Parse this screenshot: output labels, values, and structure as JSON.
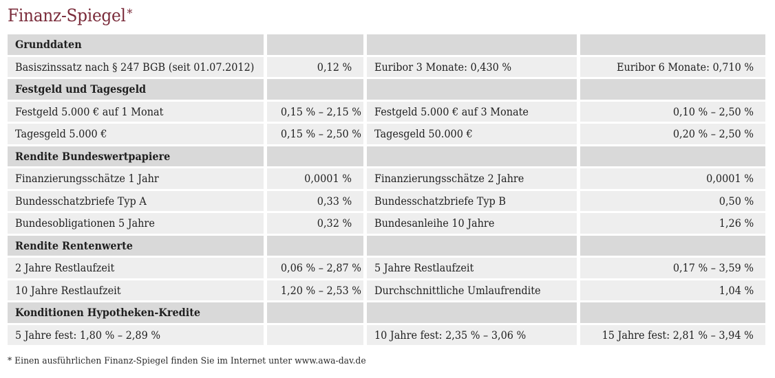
{
  "title": "Finanz-Spiegel",
  "title_marker": "*",
  "sections": [
    {
      "heading": "Grunddaten",
      "rows": [
        {
          "label1": "Basiszinssatz nach § 247 BGB (seit 01.07.2012)",
          "value1": "0,12 %",
          "label2": "Euribor 3 Monate: 0,430 %",
          "value2": "Euribor 6 Monate: 0,710 %"
        }
      ]
    },
    {
      "heading": "Festgeld und Tagesgeld",
      "rows": [
        {
          "label1": "Festgeld 5.000 € auf 1 Monat",
          "value1": "0,15 % – 2,15 %",
          "label2": "Festgeld 5.000 € auf 3 Monate",
          "value2": "0,10 % – 2,50 %"
        },
        {
          "label1": "Tagesgeld 5.000 €",
          "value1": "0,15 % – 2,50 %",
          "label2": "Tagesgeld 50.000 €",
          "value2": "0,20 % – 2,50 %"
        }
      ]
    },
    {
      "heading": "Rendite Bundeswertpapiere",
      "rows": [
        {
          "label1": "Finanzierungsschätze 1 Jahr",
          "value1": "0,0001 %",
          "label2": "Finanzierungsschätze 2 Jahre",
          "value2": "0,0001 %"
        },
        {
          "label1": "Bundesschatzbriefe Typ A",
          "value1": "0,33 %",
          "label2": "Bundesschatzbriefe Typ B",
          "value2": "0,50 %"
        },
        {
          "label1": "Bundesobligationen 5 Jahre",
          "value1": "0,32 %",
          "label2": "Bundesanleihe 10 Jahre",
          "value2": "1,26 %"
        }
      ]
    },
    {
      "heading": "Rendite Rentenwerte",
      "rows": [
        {
          "label1": "2 Jahre Restlaufzeit",
          "value1": "0,06 % – 2,87 %",
          "label2": "5 Jahre Restlaufzeit",
          "value2": "0,17 % – 3,59 %"
        },
        {
          "label1": "10 Jahre Restlaufzeit",
          "value1": "1,20 % – 2,53 %",
          "label2": "Durchschnittliche Umlaufrendite",
          "value2": "1,04 %"
        }
      ]
    },
    {
      "heading": "Konditionen Hypotheken-Kredite",
      "rows": [
        {
          "label1": "5 Jahre fest: 1,80 % – 2,89 %",
          "value1": "",
          "label2": "10 Jahre fest: 2,35 % – 3,06 %",
          "value2": "15 Jahre fest: 2,81 % – 3,94 %"
        }
      ]
    }
  ],
  "footnote": "* Einen ausführlichen Finanz-Spiegel finden Sie im Internet unter www.awa-dav.de"
}
